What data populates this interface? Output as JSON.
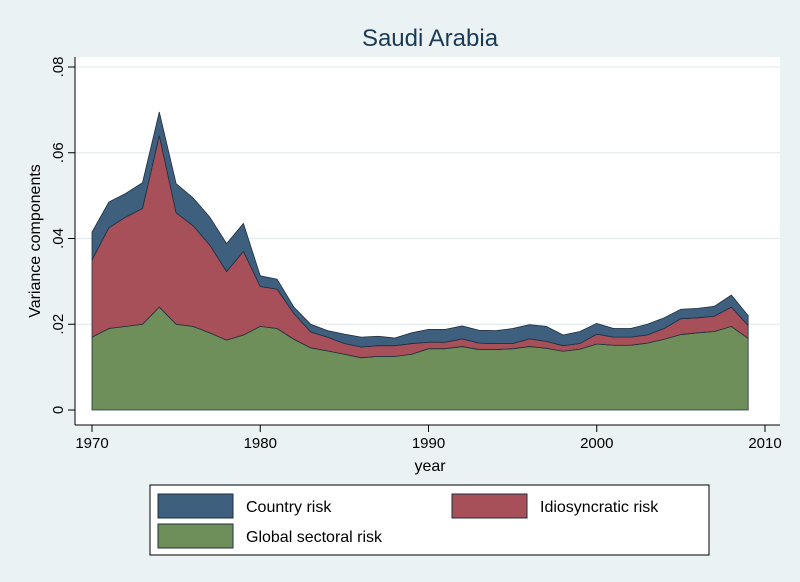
{
  "chart_data": {
    "type": "area",
    "stacked": true,
    "title": "Saudi Arabia",
    "xlabel": "year",
    "ylabel": "Variance components",
    "xlim": [
      1970,
      2010
    ],
    "ylim": [
      0,
      0.08
    ],
    "x_ticks": [
      1970,
      1980,
      1990,
      2000,
      2010
    ],
    "y_ticks": [
      0,
      0.02,
      0.04,
      0.06,
      0.08
    ],
    "x_tick_labels": [
      "1970",
      "1980",
      "1990",
      "2000",
      "2010"
    ],
    "y_tick_labels": [
      "0",
      ".02",
      ".04",
      ".06",
      ".08"
    ],
    "grid": true,
    "legend_placement": "bottom",
    "x": [
      1970,
      1971,
      1972,
      1973,
      1974,
      1975,
      1976,
      1977,
      1978,
      1979,
      1980,
      1981,
      1982,
      1983,
      1984,
      1985,
      1986,
      1987,
      1988,
      1989,
      1990,
      1991,
      1992,
      1993,
      1994,
      1995,
      1996,
      1997,
      1998,
      1999,
      2000,
      2001,
      2002,
      2003,
      2004,
      2005,
      2006,
      2007,
      2008,
      2009
    ],
    "series": [
      {
        "name": "Global sectoral risk",
        "color": "#6e8f5a",
        "values": [
          0.017,
          0.019,
          0.0195,
          0.02,
          0.024,
          0.02,
          0.0195,
          0.018,
          0.0163,
          0.0175,
          0.0195,
          0.019,
          0.0165,
          0.0145,
          0.0138,
          0.013,
          0.0122,
          0.0125,
          0.0125,
          0.013,
          0.0143,
          0.0143,
          0.0148,
          0.0141,
          0.0141,
          0.0143,
          0.0148,
          0.0144,
          0.0137,
          0.0142,
          0.0154,
          0.0151,
          0.0151,
          0.0156,
          0.0165,
          0.0176,
          0.018,
          0.0183,
          0.0195,
          0.0167
        ]
      },
      {
        "name": "Idiosyncratic risk",
        "color": "#a8505a",
        "values": [
          0.018,
          0.0235,
          0.0255,
          0.027,
          0.04,
          0.026,
          0.0235,
          0.0205,
          0.016,
          0.0195,
          0.0093,
          0.0092,
          0.006,
          0.0037,
          0.0032,
          0.0025,
          0.0025,
          0.0025,
          0.0025,
          0.0025,
          0.0015,
          0.0015,
          0.0018,
          0.0015,
          0.0014,
          0.0012,
          0.0018,
          0.0016,
          0.0013,
          0.0013,
          0.0023,
          0.0019,
          0.0019,
          0.0019,
          0.0025,
          0.0037,
          0.0035,
          0.0036,
          0.0045,
          0.003
        ]
      },
      {
        "name": "Country risk",
        "color": "#3f5f7e",
        "values": [
          0.0065,
          0.006,
          0.0055,
          0.006,
          0.0055,
          0.0068,
          0.0065,
          0.0065,
          0.0065,
          0.0065,
          0.0025,
          0.0023,
          0.0015,
          0.0018,
          0.0015,
          0.0022,
          0.0023,
          0.0022,
          0.0018,
          0.0025,
          0.003,
          0.003,
          0.003,
          0.003,
          0.003,
          0.0035,
          0.0033,
          0.0035,
          0.0025,
          0.0028,
          0.0025,
          0.002,
          0.002,
          0.0025,
          0.0025,
          0.0022,
          0.0022,
          0.0023,
          0.0028,
          0.0023
        ]
      }
    ],
    "legend": [
      {
        "label": "Country risk",
        "color": "#3f5f7e"
      },
      {
        "label": "Idiosyncratic risk",
        "color": "#a8505a"
      },
      {
        "label": "Global sectoral risk",
        "color": "#6e8f5a"
      }
    ]
  }
}
